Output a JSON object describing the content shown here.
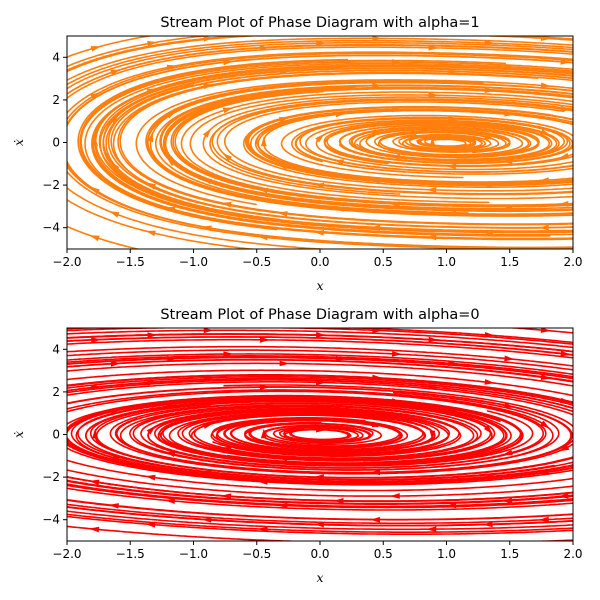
{
  "chart_data": [
    {
      "type": "stream",
      "title": "Stream Plot of Phase Diagram with alpha=1",
      "xlabel": "x",
      "ylabel": "ẋ",
      "xlim": [
        -2.0,
        2.0
      ],
      "ylim": [
        -5,
        5
      ],
      "xticks": [
        "−2.0",
        "−1.5",
        "−1.0",
        "−0.5",
        "0.0",
        "0.5",
        "1.0",
        "1.5",
        "2.0"
      ],
      "yticks": [
        "−4",
        "−2",
        "0",
        "2",
        "4"
      ],
      "color": "#ff7f0e",
      "alpha": 1,
      "center": [
        1,
        0
      ],
      "grid": false
    },
    {
      "type": "stream",
      "title": "Stream Plot of Phase Diagram with alpha=0",
      "xlabel": "x",
      "ylabel": "ẋ",
      "xlim": [
        -2.0,
        2.0
      ],
      "ylim": [
        -5,
        5
      ],
      "xticks": [
        "−2.0",
        "−1.5",
        "−1.0",
        "−0.5",
        "0.0",
        "0.5",
        "1.0",
        "1.5",
        "2.0"
      ],
      "yticks": [
        "−4",
        "−2",
        "0",
        "2",
        "4"
      ],
      "color": "#ff0000",
      "alpha": 0,
      "center": [
        0,
        0
      ],
      "grid": false
    }
  ]
}
